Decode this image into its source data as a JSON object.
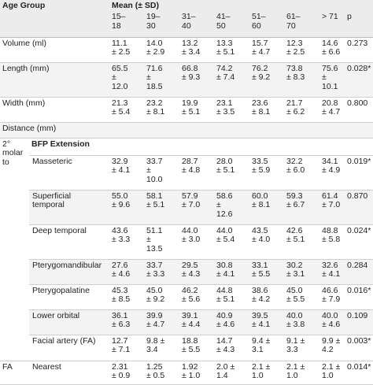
{
  "header": {
    "age_group": "Age Group",
    "mean_sd": "Mean (± SD)",
    "p": "p",
    "age_groups": [
      "15–\n18",
      "19–\n30",
      "31–\n40",
      "41–\n50",
      "51–\n60",
      "61–\n70",
      "> 71"
    ]
  },
  "rows": [
    {
      "label": "Volume (ml)",
      "values": [
        "11.1\n± 2.5",
        "14.0\n± 2.9",
        "13.2\n± 3.4",
        "13.3\n± 5.1",
        "15.7\n± 4.7",
        "12.3\n± 2.5",
        "14.6\n± 6.6"
      ],
      "p": "0.273"
    },
    {
      "label": "Length (mm)",
      "values": [
        "65.5\n±\n12.0",
        "71.6\n±\n18.5",
        "66.8\n± 9.3",
        "74.2\n± 7.4",
        "76.2\n± 9.2",
        "73.8\n± 8.3",
        "75.6\n±\n10.1"
      ],
      "p": "0.028*"
    },
    {
      "label": "Width (mm)",
      "values": [
        "21.3\n± 5.4",
        "23.2\n± 8.1",
        "19.9\n± 5.1",
        "23.1\n± 3.5",
        "23.6\n± 8.1",
        "21.7\n± 6.2",
        "20.8\n± 4.7"
      ],
      "p": "0.800"
    },
    {
      "label": "Distance (mm)",
      "values": [
        "",
        "",
        "",
        "",
        "",
        "",
        ""
      ],
      "p": ""
    }
  ],
  "section": {
    "molar_label": "2°\nmolar\nto",
    "extension_label": "BFP Extension",
    "rows": [
      {
        "label": "Masseteric",
        "values": [
          "32.9\n± 4.1",
          "33.7\n±\n10.0",
          "28.7\n± 4.8",
          "28.0\n± 5.1",
          "33.5\n± 5.9",
          "32.2\n± 6.0",
          "34.1\n± 4.9"
        ],
        "p": "0.019*"
      },
      {
        "label": "Superficial\ntemporal",
        "values": [
          "55.0\n± 9.6",
          "58.1\n± 5.1",
          "57.9\n± 7.0",
          "58.6\n±\n12.6",
          "60.0\n± 8.1",
          "59.3\n± 6.7",
          "61.4\n± 7.0"
        ],
        "p": "0.870"
      },
      {
        "label": "Deep temporal",
        "values": [
          "43.6\n± 3.3",
          "51.1\n±\n13.5",
          "44.0\n± 3.0",
          "44.0\n± 5.4",
          "43.5\n± 4.0",
          "42.6\n± 5.1",
          "48.8\n± 5.8"
        ],
        "p": "0.024*"
      },
      {
        "label": "Pterygomandibular",
        "values": [
          "27.6\n± 4.6",
          "33.7\n± 3.3",
          "29.5\n± 4.3",
          "30.8\n± 4.1",
          "33.1\n± 5.5",
          "30.2\n± 3.1",
          "32.6\n± 4.1"
        ],
        "p": "0.284"
      },
      {
        "label": "Pterygopalatine",
        "values": [
          "45.3\n± 8.5",
          "45.0\n± 9.2",
          "46.2\n± 5.6",
          "44.8\n± 5.1",
          "38.6\n± 4.2",
          "45.0\n± 5.5",
          "46.6\n± 7.9"
        ],
        "p": "0.016*"
      },
      {
        "label": "Lower orbital",
        "values": [
          "36.1\n± 6.3",
          "39.9\n± 4.7",
          "39.1\n± 4.4",
          "40.9\n± 4.6",
          "39.5\n± 4.1",
          "40.0\n± 3.8",
          "40.0\n± 4.6"
        ],
        "p": "0.109"
      },
      {
        "label": "Facial artery (FA)",
        "values": [
          "12.7\n± 7.1",
          "9.8 ±\n3.4",
          "18.8\n± 5.5",
          "14.7\n± 4.3",
          "9.4 ±\n3.1",
          "9.1 ±\n3.3",
          "9.9 ±\n4.2"
        ],
        "p": "0.003*"
      }
    ]
  },
  "last_row": {
    "label_left": "FA",
    "label": "Nearest",
    "values": [
      "2.31\n± 0.9",
      "1.25\n± 0.5",
      "1.92\n± 1.0",
      "2.0 ±\n1.4",
      "2.1 ±\n1.0",
      "2.1 ±\n1.0",
      "2.1 ±\n1.0"
    ],
    "p": "0.014*"
  }
}
